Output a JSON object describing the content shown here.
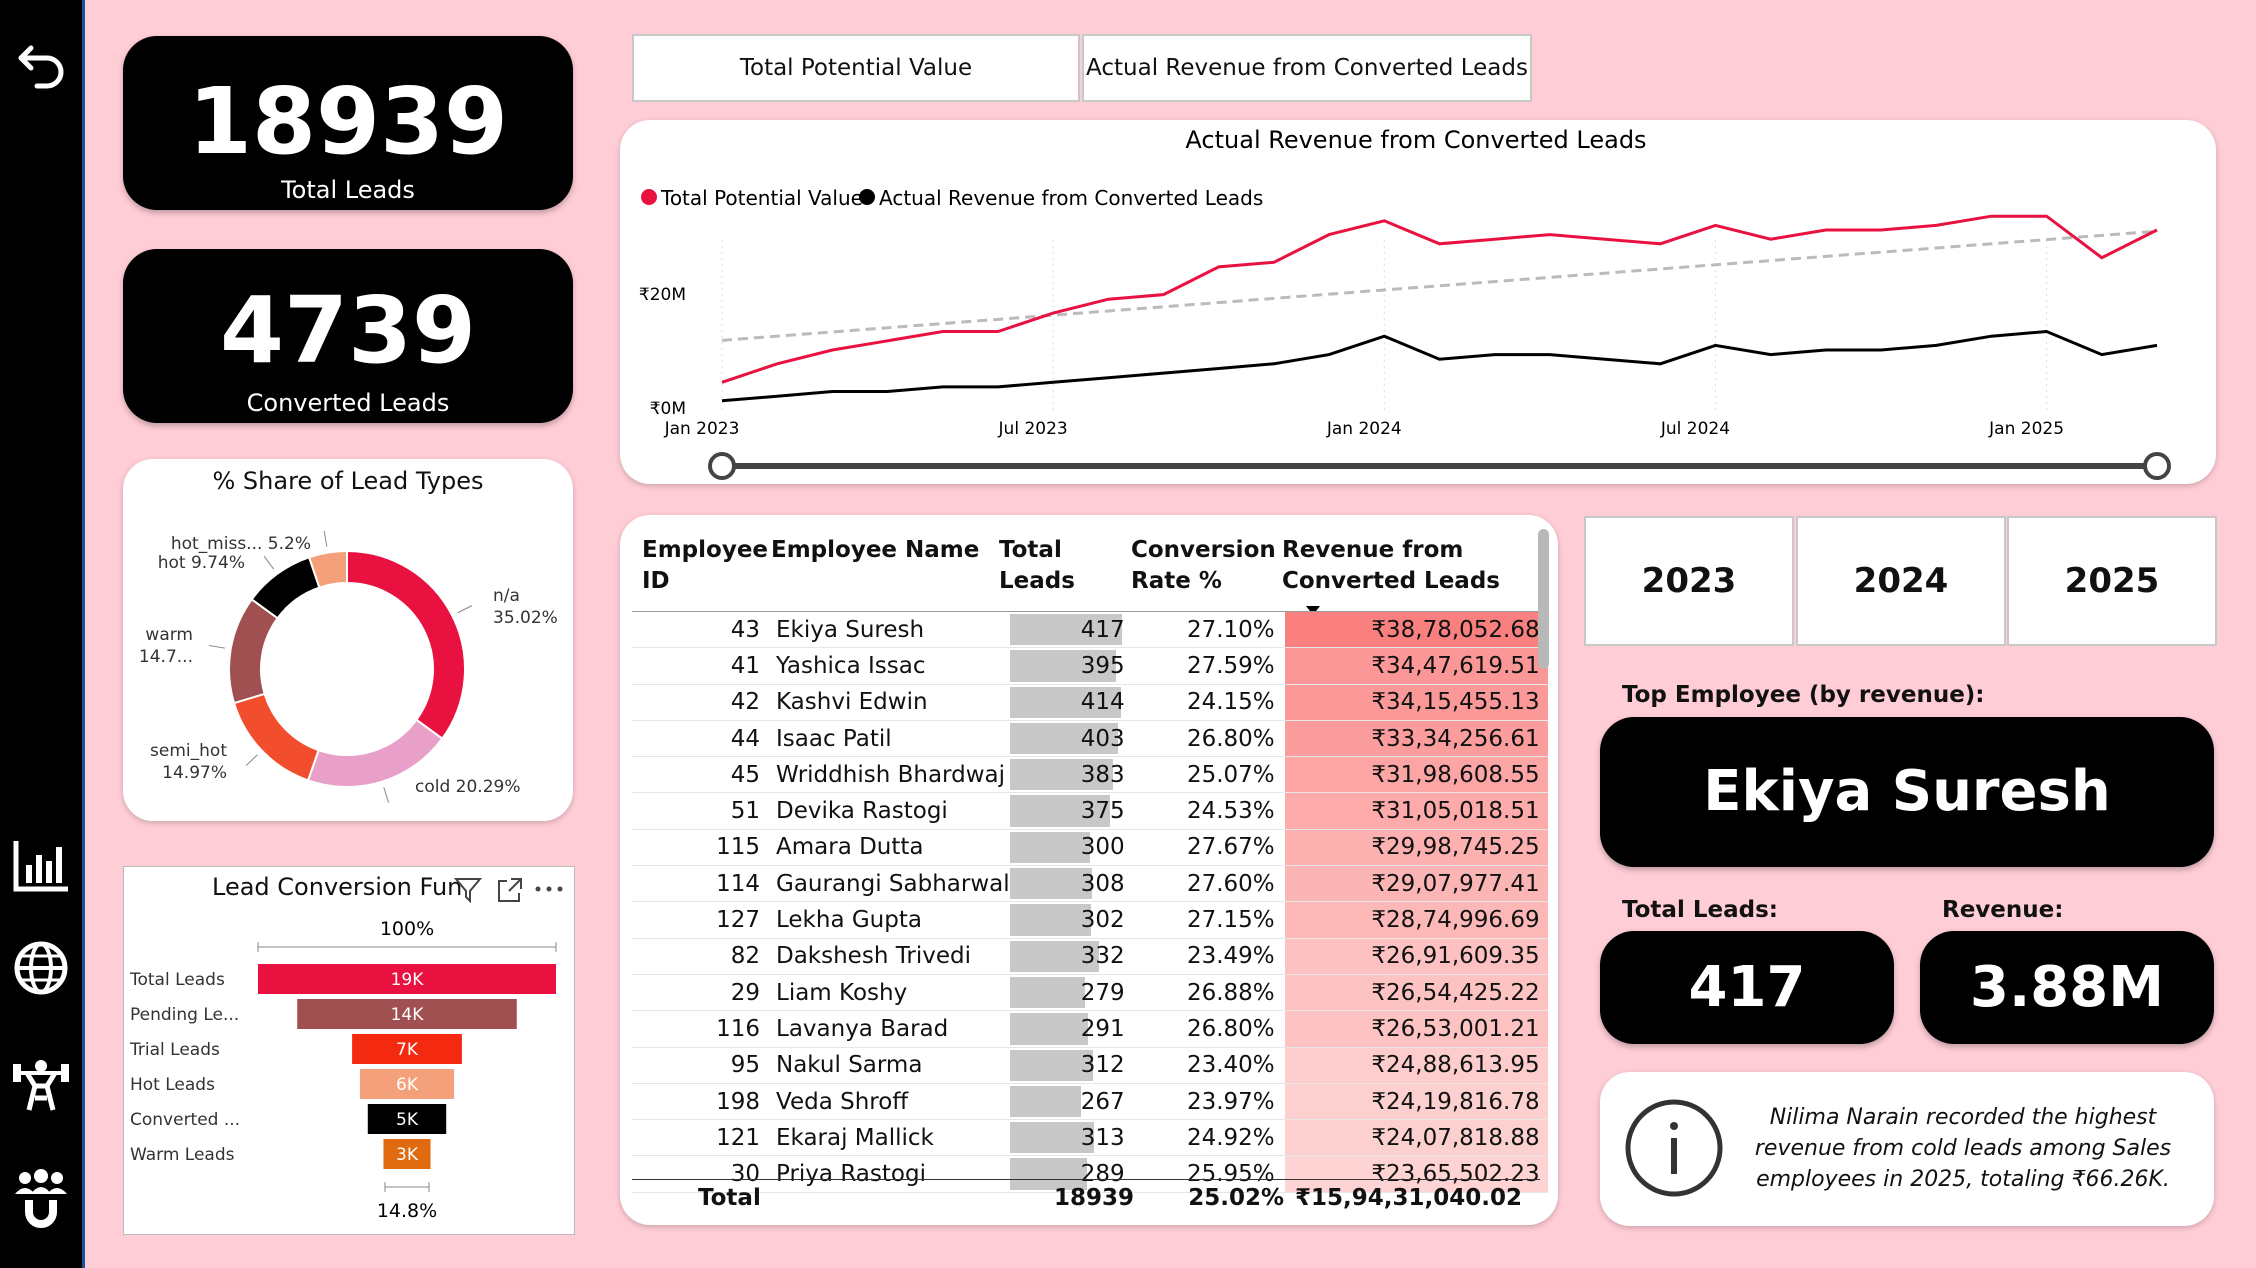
{
  "kpis": {
    "total_leads": {
      "value": "18939",
      "label": "Total Leads"
    },
    "converted": {
      "value": "4739",
      "label": "Converted Leads"
    }
  },
  "tabs": [
    "Total Potential Value",
    "Actual Revenue from Converted Leads"
  ],
  "line_chart": {
    "title": "Actual Revenue from Converted Leads",
    "legend": [
      {
        "name": "Total Potential Value",
        "color": "#e8113f"
      },
      {
        "name": "Actual Revenue from Converted Leads",
        "color": "#000000"
      }
    ],
    "y_ticks": [
      "₹20M",
      "₹0M"
    ],
    "x_ticks": [
      "Jan 2023",
      "Jul 2023",
      "Jan 2024",
      "Jul 2024",
      "Jan 2025"
    ]
  },
  "chart_data": [
    {
      "type": "line",
      "title": "Actual Revenue from Converted Leads",
      "x": [
        "2023-01",
        "2023-02",
        "2023-03",
        "2023-04",
        "2023-05",
        "2023-06",
        "2023-07",
        "2023-08",
        "2023-09",
        "2023-10",
        "2023-11",
        "2023-12",
        "2024-01",
        "2024-02",
        "2024-03",
        "2024-04",
        "2024-05",
        "2024-06",
        "2024-07",
        "2024-08",
        "2024-09",
        "2024-10",
        "2024-11",
        "2024-12",
        "2025-01",
        "2025-02",
        "2025-03"
      ],
      "ylim": [
        0,
        26
      ],
      "y_unit": "₹M",
      "series": [
        {
          "name": "Total Potential Value",
          "color": "#e8113f",
          "values": [
            3,
            5,
            6.5,
            7.5,
            8.5,
            8.5,
            10.5,
            12,
            12.5,
            15.5,
            16,
            19,
            20.5,
            18,
            18.5,
            19,
            18.5,
            18,
            20,
            18.5,
            19.5,
            19.5,
            20,
            21,
            21,
            16.5,
            19.5
          ]
        },
        {
          "name": "Actual Revenue from Converted Leads",
          "color": "#000000",
          "values": [
            1,
            1.5,
            2,
            2,
            2.5,
            2.5,
            3,
            3.5,
            4,
            4.5,
            5,
            6,
            8,
            5.5,
            6,
            6,
            5.5,
            5,
            7,
            6,
            6.5,
            6.5,
            7,
            8,
            8.5,
            6,
            7
          ]
        }
      ]
    },
    {
      "type": "pie",
      "title": "% Share of Lead Types",
      "slices": [
        {
          "label": "n/a",
          "value": 35.02,
          "display": "35.02%",
          "color": "#e8113f"
        },
        {
          "label": "cold",
          "value": 20.29,
          "display": "20.29%",
          "color": "#e8a0c8"
        },
        {
          "label": "semi_hot",
          "value": 14.97,
          "display": "14.97%",
          "color": "#f24e2e"
        },
        {
          "label": "warm",
          "value": 14.7,
          "display": "14.7...",
          "color": "#a05050"
        },
        {
          "label": "hot",
          "value": 9.74,
          "display": "9.74%",
          "color": "#000000"
        },
        {
          "label": "hot_miss...",
          "value": 5.2,
          "display": "5.2%",
          "color": "#f4a07a"
        }
      ]
    },
    {
      "type": "bar",
      "title": "Lead Conversion Fun",
      "top_label": "100%",
      "bottom_label": "14.8%",
      "categories": [
        "Total Leads",
        "Pending Le...",
        "Trial Leads",
        "Hot Leads",
        "Converted ...",
        "Warm Leads"
      ],
      "values": [
        19,
        14,
        7,
        6,
        5,
        3
      ],
      "value_labels": [
        "19K",
        "14K",
        "7K",
        "6K",
        "5K",
        "3K"
      ],
      "colors": [
        "#e8113f",
        "#a05050",
        "#f42a10",
        "#f4a07a",
        "#000000",
        "#e06a10"
      ]
    }
  ],
  "donut": {
    "title": "% Share of Lead Types"
  },
  "funnel": {
    "title": "Lead Conversion Fun"
  },
  "table": {
    "headers": [
      "Employee ID",
      "Employee Name",
      "Total Leads",
      "Conversion Rate %",
      "Revenue from Converted Leads"
    ],
    "rows": [
      {
        "id": "43",
        "name": "Ekiya Suresh",
        "leads": 417,
        "rate": "27.10%",
        "revenue": "₹38,78,052.68",
        "rev": 38.78
      },
      {
        "id": "41",
        "name": "Yashica Issac",
        "leads": 395,
        "rate": "27.59%",
        "revenue": "₹34,47,619.51",
        "rev": 34.48
      },
      {
        "id": "42",
        "name": "Kashvi Edwin",
        "leads": 414,
        "rate": "24.15%",
        "revenue": "₹34,15,455.13",
        "rev": 34.15
      },
      {
        "id": "44",
        "name": "Isaac Patil",
        "leads": 403,
        "rate": "26.80%",
        "revenue": "₹33,34,256.61",
        "rev": 33.34
      },
      {
        "id": "45",
        "name": "Wriddhish Bhardwaj",
        "leads": 383,
        "rate": "25.07%",
        "revenue": "₹31,98,608.55",
        "rev": 31.99
      },
      {
        "id": "51",
        "name": "Devika Rastogi",
        "leads": 375,
        "rate": "24.53%",
        "revenue": "₹31,05,018.51",
        "rev": 31.05
      },
      {
        "id": "115",
        "name": "Amara Dutta",
        "leads": 300,
        "rate": "27.67%",
        "revenue": "₹29,98,745.25",
        "rev": 29.99
      },
      {
        "id": "114",
        "name": "Gaurangi Sabharwal",
        "leads": 308,
        "rate": "27.60%",
        "revenue": "₹29,07,977.41",
        "rev": 29.08
      },
      {
        "id": "127",
        "name": "Lekha Gupta",
        "leads": 302,
        "rate": "27.15%",
        "revenue": "₹28,74,996.69",
        "rev": 28.75
      },
      {
        "id": "82",
        "name": "Dakshesh Trivedi",
        "leads": 332,
        "rate": "23.49%",
        "revenue": "₹26,91,609.35",
        "rev": 26.92
      },
      {
        "id": "29",
        "name": "Liam Koshy",
        "leads": 279,
        "rate": "26.88%",
        "revenue": "₹26,54,425.22",
        "rev": 26.54
      },
      {
        "id": "116",
        "name": "Lavanya Barad",
        "leads": 291,
        "rate": "26.80%",
        "revenue": "₹26,53,001.21",
        "rev": 26.53
      },
      {
        "id": "95",
        "name": "Nakul Sarma",
        "leads": 312,
        "rate": "23.40%",
        "revenue": "₹24,88,613.95",
        "rev": 24.89
      },
      {
        "id": "198",
        "name": "Veda Shroff",
        "leads": 267,
        "rate": "23.97%",
        "revenue": "₹24,19,816.78",
        "rev": 24.2
      },
      {
        "id": "121",
        "name": "Ekaraj Mallick",
        "leads": 313,
        "rate": "24.92%",
        "revenue": "₹24,07,818.88",
        "rev": 24.08
      },
      {
        "id": "30",
        "name": "Priya Rastogi",
        "leads": 289,
        "rate": "25.95%",
        "revenue": "₹23,65,502.23",
        "rev": 23.66
      }
    ],
    "total": {
      "label": "Total",
      "leads": "18939",
      "rate": "25.02%",
      "revenue": "₹15,94,31,040.02"
    }
  },
  "years": [
    "2023",
    "2024",
    "2025"
  ],
  "top_employee": {
    "heading": "Top Employee (by revenue):",
    "name": "Ekiya Suresh",
    "leads_label": "Total Leads:",
    "leads": "417",
    "revenue_label": "Revenue:",
    "revenue": "3.88M"
  },
  "insight": "Nilima Narain recorded the highest revenue from cold leads among Sales employees in 2025, totaling ₹66.26K.",
  "icons": [
    "back-arrow-icon",
    "bar-chart-icon",
    "globe-icon",
    "weightlifter-icon",
    "team-magnet-icon",
    "info-icon",
    "filter-icon",
    "expand-icon",
    "more-options-icon",
    "sort-desc-icon"
  ]
}
